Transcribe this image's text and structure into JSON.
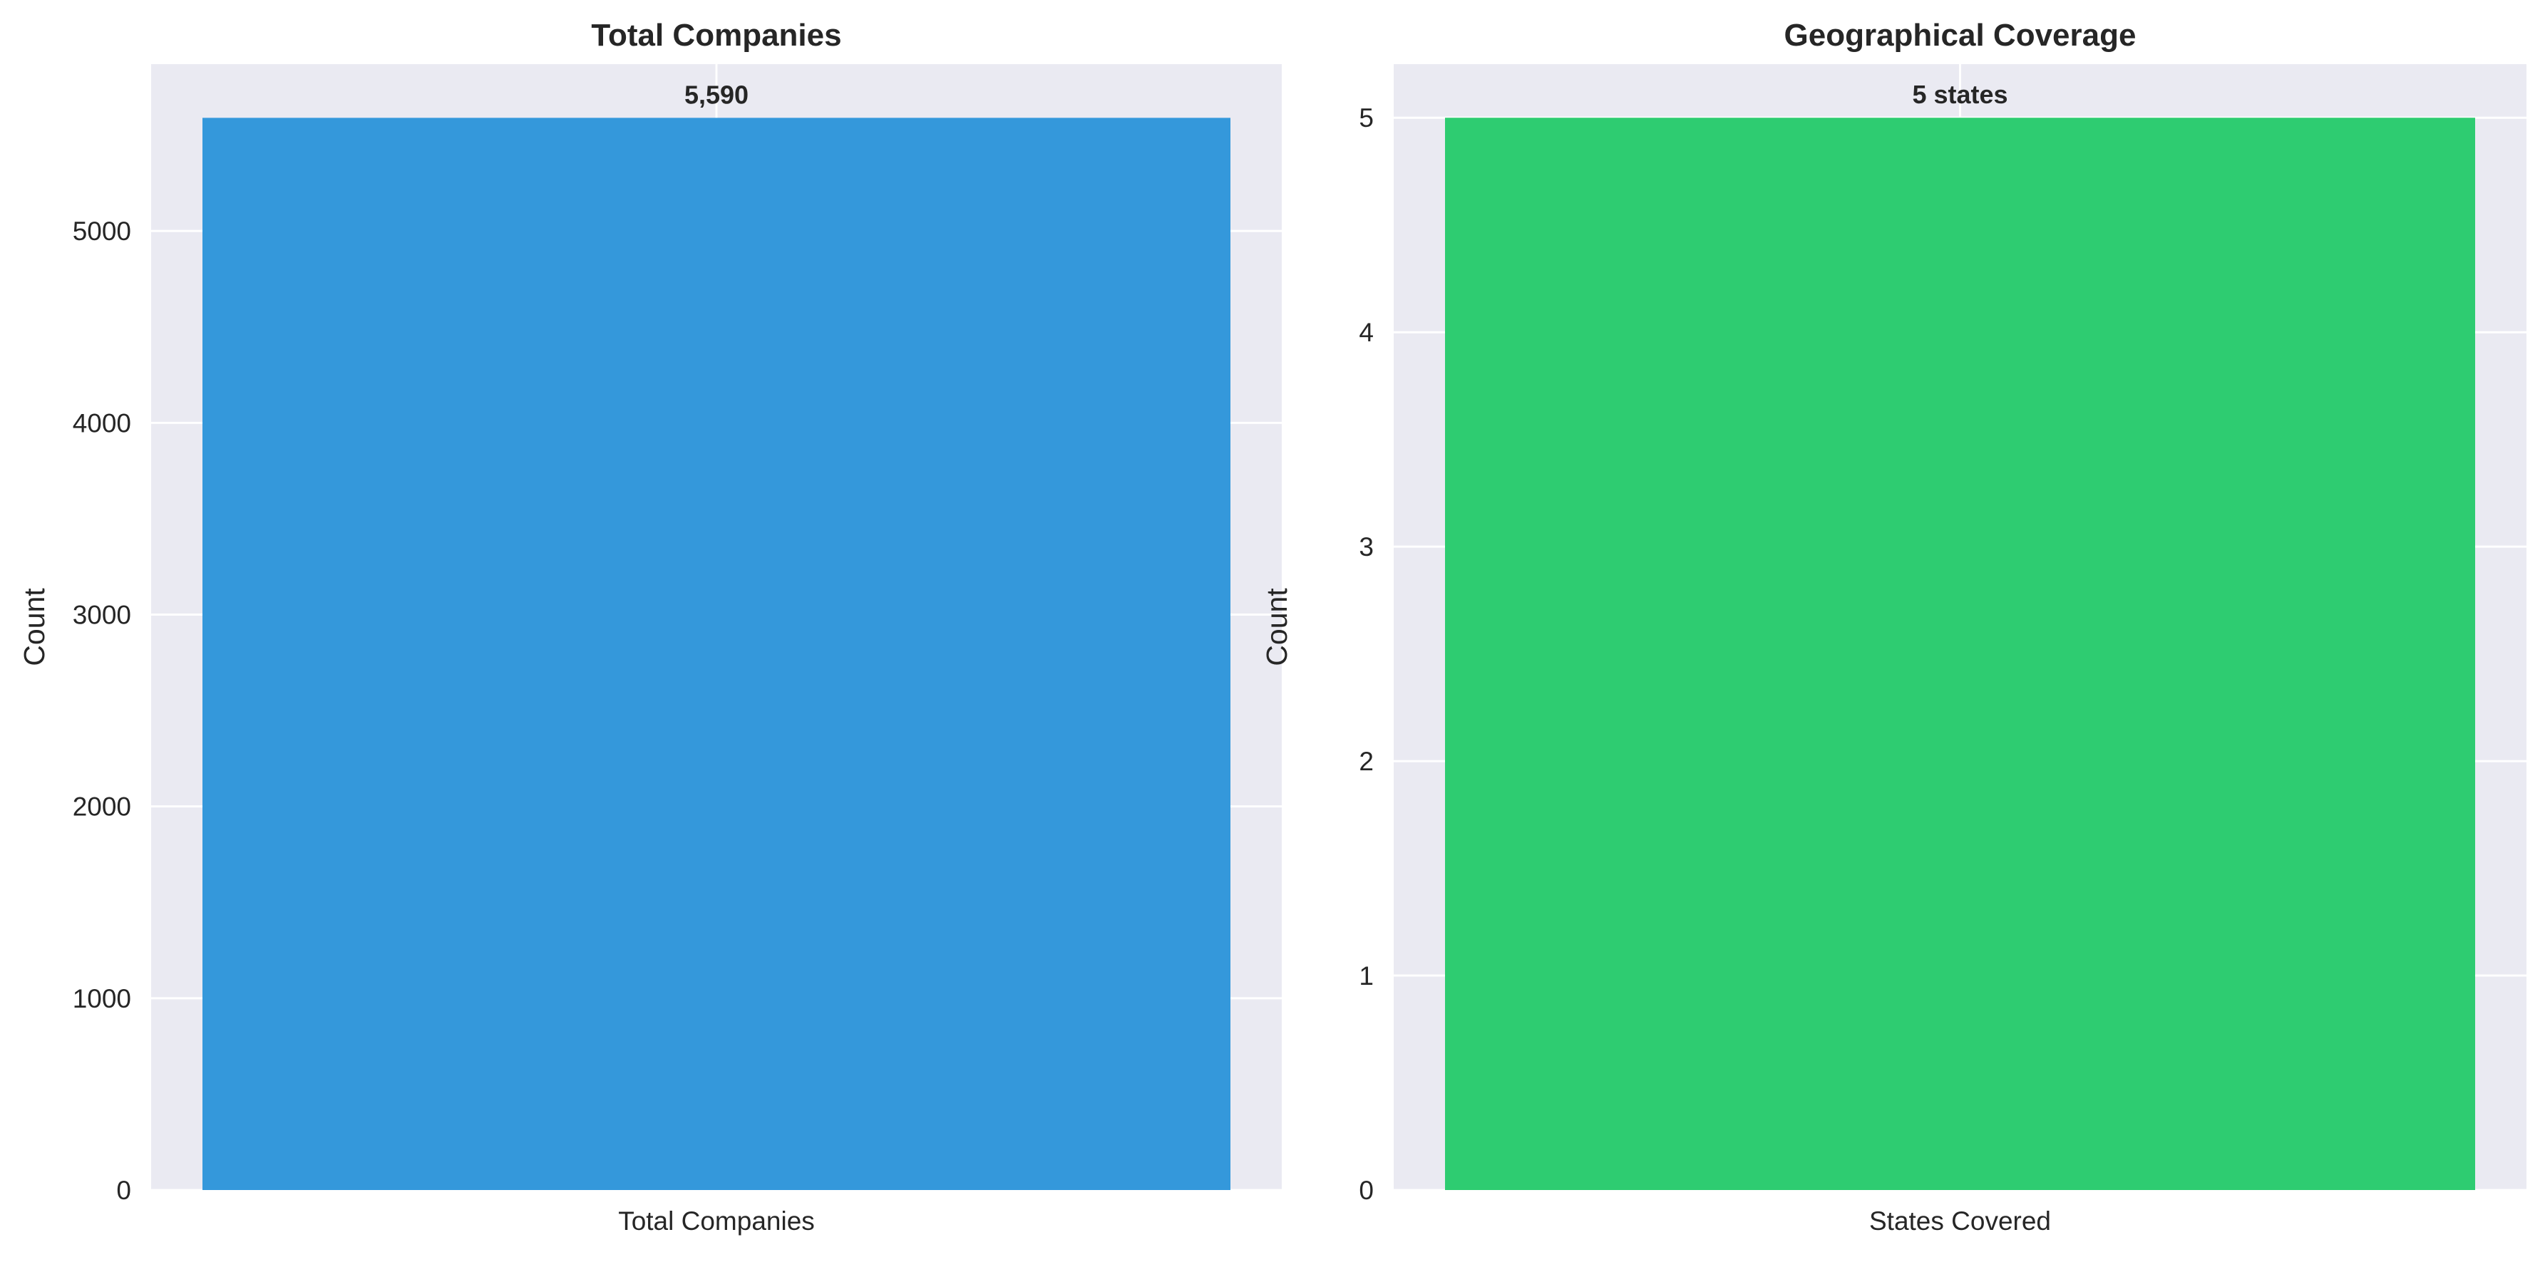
{
  "chart_data": [
    {
      "type": "bar",
      "title": "Total Companies",
      "categories": [
        "Total Companies"
      ],
      "values": [
        5590
      ],
      "data_labels": [
        "5,590"
      ],
      "xlabel": "",
      "ylabel": "Count",
      "ylim": [
        0,
        5870
      ],
      "yticks": [
        0,
        1000,
        2000,
        3000,
        4000,
        5000
      ],
      "bar_color": "#3498db",
      "grid": true
    },
    {
      "type": "bar",
      "title": "Geographical Coverage",
      "categories": [
        "States Covered"
      ],
      "values": [
        5
      ],
      "data_labels": [
        "5 states"
      ],
      "xlabel": "",
      "ylabel": "Count",
      "ylim": [
        0,
        5.25
      ],
      "yticks": [
        0,
        1,
        2,
        3,
        4,
        5
      ],
      "bar_color": "#2ecc71",
      "grid": true
    }
  ],
  "theme": {
    "plot_background": "#eaeaf2",
    "grid_color": "#ffffff",
    "text_color": "#262626"
  }
}
